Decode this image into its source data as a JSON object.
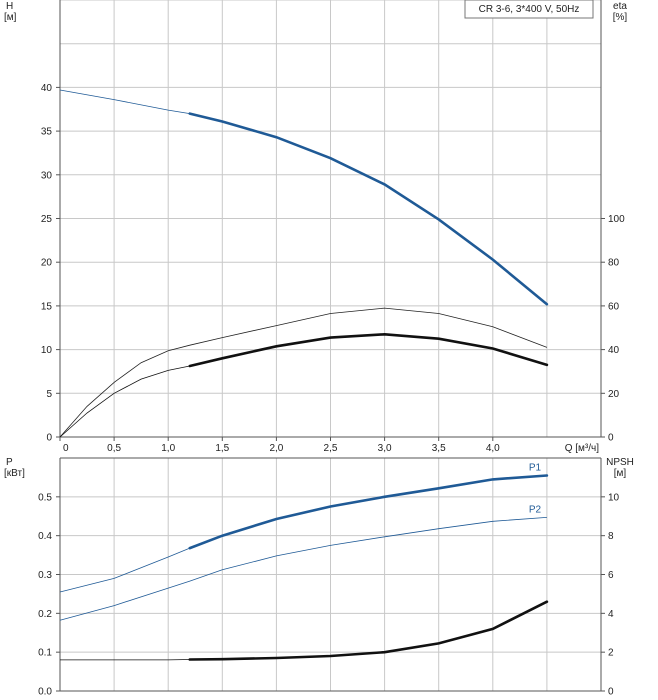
{
  "chart_data": [
    {
      "type": "line",
      "title": "CR 3-6, 3*400 V, 50Hz",
      "xlabel": "Q [м³/ч]",
      "ylabel_left": "H",
      "ylabel_left_unit": "[м]",
      "ylabel_right": "eta",
      "ylabel_right_unit": "[%]",
      "x_ticks": [
        "0",
        "0,5",
        "1,0",
        "1,5",
        "2,0",
        "2,5",
        "3,0",
        "3,5",
        "4,0"
      ],
      "y_left_ticks": [
        "0",
        "5",
        "10",
        "15",
        "20",
        "25",
        "30",
        "35",
        "40"
      ],
      "y_right_ticks": [
        "0",
        "20",
        "40",
        "60",
        "80",
        "100"
      ],
      "xlim": [
        0,
        5
      ],
      "ylim_left": [
        0,
        50
      ],
      "ylim_right": [
        0,
        200
      ],
      "grid": true,
      "series": [
        {
          "axis": "left",
          "color": "#1f5a96",
          "x": [
            0,
            0.5,
            1.0,
            1.2,
            1.5,
            2.0,
            2.5,
            3.0,
            3.5,
            4.0,
            4.5
          ],
          "y": [
            39.7,
            38.6,
            37.4,
            37.0,
            36.1,
            34.3,
            31.9,
            28.9,
            24.9,
            20.3,
            15.2
          ],
          "bold_from": 1.2
        },
        {
          "axis": "right",
          "color": "#222222",
          "x": [
            0,
            0.25,
            0.5,
            0.75,
            1.0,
            1.2,
            1.5,
            2.0,
            2.5,
            3.0,
            3.5,
            4.0,
            4.5
          ],
          "y": [
            0,
            14,
            25,
            34,
            39.5,
            42,
            45.5,
            51,
            56.5,
            59,
            56.5,
            50.5,
            41
          ],
          "bold_from": null
        },
        {
          "axis": "right",
          "color": "#111111",
          "x": [
            0,
            0.25,
            0.5,
            0.75,
            1.0,
            1.2,
            1.5,
            2.0,
            2.5,
            3.0,
            3.5,
            4.0,
            4.5
          ],
          "y": [
            0,
            11,
            20,
            26.5,
            30.5,
            32.5,
            36,
            41.5,
            45.5,
            47,
            45,
            40.5,
            33
          ],
          "bold_from": 1.2
        }
      ]
    },
    {
      "type": "line",
      "xlabel": "",
      "ylabel_left": "P",
      "ylabel_left_unit": "[кВт]",
      "ylabel_right": "NPSH",
      "ylabel_right_unit": "[м]",
      "x_ticks": [],
      "y_left_ticks": [
        "0.0",
        "0.1",
        "0.2",
        "0.3",
        "0.4",
        "0.5"
      ],
      "y_right_ticks": [
        "0",
        "2",
        "4",
        "6",
        "8",
        "10"
      ],
      "xlim": [
        0,
        5
      ],
      "ylim_left": [
        0,
        0.6
      ],
      "ylim_right": [
        0,
        12
      ],
      "grid": true,
      "series": [
        {
          "name": "P1",
          "axis": "left",
          "color": "#1f5a96",
          "x": [
            0,
            0.5,
            1.0,
            1.2,
            1.5,
            2.0,
            2.5,
            3.0,
            3.5,
            4.0,
            4.5
          ],
          "y": [
            0.255,
            0.29,
            0.345,
            0.368,
            0.4,
            0.443,
            0.475,
            0.5,
            0.522,
            0.545,
            0.555
          ],
          "bold_from": 1.2
        },
        {
          "name": "P2",
          "axis": "left",
          "color": "#1f5a96",
          "x": [
            0,
            0.5,
            1.0,
            1.2,
            1.5,
            2.0,
            2.5,
            3.0,
            3.5,
            4.0,
            4.5
          ],
          "y": [
            0.182,
            0.22,
            0.265,
            0.283,
            0.312,
            0.348,
            0.375,
            0.397,
            0.418,
            0.437,
            0.447
          ],
          "bold_from": null
        },
        {
          "axis": "right",
          "color": "#111111",
          "x": [
            0,
            0.5,
            1.0,
            1.2,
            1.5,
            2.0,
            2.5,
            3.0,
            3.5,
            4.0,
            4.5
          ],
          "y": [
            1.6,
            1.6,
            1.6,
            1.62,
            1.64,
            1.7,
            1.8,
            2.0,
            2.45,
            3.2,
            4.6
          ],
          "bold_from": 1.2
        }
      ]
    }
  ]
}
